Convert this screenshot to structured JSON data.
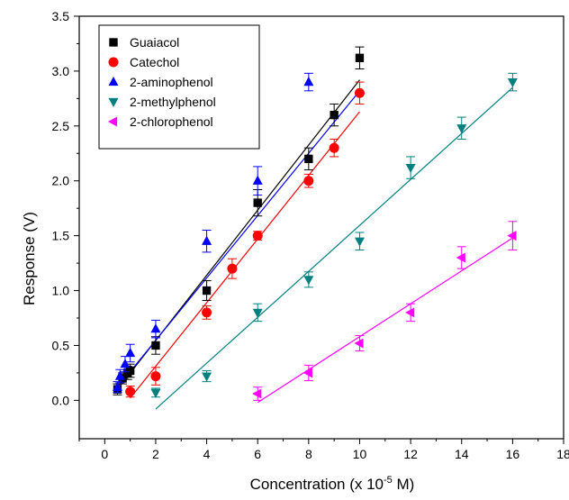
{
  "chart_data": {
    "type": "scatter",
    "xlabel": "Concentration (x 10",
    "xlabel_exp": "-5",
    "xlabel_unit": " M)",
    "ylabel": "Response (V)",
    "xlim": [
      -1,
      18
    ],
    "ylim": [
      -0.35,
      3.5
    ],
    "xticks": [
      0,
      2,
      4,
      6,
      8,
      10,
      12,
      14,
      16,
      18
    ],
    "yticks": [
      0.0,
      0.5,
      1.0,
      1.5,
      2.0,
      2.5,
      3.0,
      3.5
    ],
    "xtick_labels": [
      "0",
      "2",
      "4",
      "6",
      "8",
      "10",
      "12",
      "14",
      "16",
      "18"
    ],
    "ytick_labels": [
      "0.0",
      "0.5",
      "1.0",
      "1.5",
      "2.0",
      "2.5",
      "3.0",
      "3.5"
    ],
    "grid": false,
    "legend_position": "top-left",
    "series": [
      {
        "name": "Guaiacol",
        "color": "#000000",
        "marker": "square",
        "x": [
          0.5,
          0.7,
          0.9,
          1.0,
          2,
          4,
          6,
          8,
          9,
          10
        ],
        "y": [
          0.1,
          0.2,
          0.25,
          0.27,
          0.5,
          1.0,
          1.8,
          2.2,
          2.6,
          3.12
        ],
        "err": [
          0.05,
          0.05,
          0.06,
          0.06,
          0.08,
          0.09,
          0.12,
          0.1,
          0.1,
          0.1
        ],
        "fit": [
          [
            0.5,
            0.1
          ],
          [
            10,
            2.92
          ]
        ]
      },
      {
        "name": "Catechol",
        "color": "#ff0000",
        "marker": "circle",
        "x": [
          1,
          2,
          4,
          5,
          6,
          8,
          9,
          10
        ],
        "y": [
          0.08,
          0.22,
          0.8,
          1.2,
          1.5,
          2.0,
          2.3,
          2.8
        ],
        "err": [
          0.05,
          0.08,
          0.06,
          0.09,
          0.04,
          0.06,
          0.08,
          0.1
        ],
        "fit": [
          [
            1,
            0.02
          ],
          [
            10,
            2.63
          ]
        ]
      },
      {
        "name": "2-aminophenol",
        "color": "#0000ff",
        "marker": "triangle-up",
        "x": [
          0.5,
          0.6,
          0.8,
          1.0,
          2,
          4,
          6,
          8
        ],
        "y": [
          0.12,
          0.22,
          0.33,
          0.43,
          0.65,
          1.45,
          2.0,
          2.9
        ],
        "err": [
          0.05,
          0.06,
          0.07,
          0.08,
          0.08,
          0.1,
          0.13,
          0.08
        ],
        "fit": [
          [
            0.5,
            0.12
          ],
          [
            10,
            2.82
          ]
        ]
      },
      {
        "name": "2-methylphenol",
        "color": "#008080",
        "marker": "triangle-down",
        "x": [
          2,
          4,
          6,
          8,
          10,
          12,
          14,
          16
        ],
        "y": [
          0.07,
          0.22,
          0.8,
          1.1,
          1.45,
          2.12,
          2.48,
          2.9
        ],
        "err": [
          0.04,
          0.05,
          0.08,
          0.07,
          0.08,
          0.1,
          0.1,
          0.08
        ],
        "fit": [
          [
            2,
            -0.08
          ],
          [
            16,
            2.85
          ]
        ]
      },
      {
        "name": "2-chlorophenol",
        "color": "#ff00ff",
        "marker": "triangle-left",
        "x": [
          6,
          8,
          10,
          12,
          14,
          16
        ],
        "y": [
          0.06,
          0.25,
          0.52,
          0.8,
          1.3,
          1.5
        ],
        "err": [
          0.06,
          0.07,
          0.07,
          0.08,
          0.1,
          0.13
        ],
        "fit": [
          [
            6,
            -0.02
          ],
          [
            16,
            1.48
          ]
        ]
      }
    ]
  }
}
